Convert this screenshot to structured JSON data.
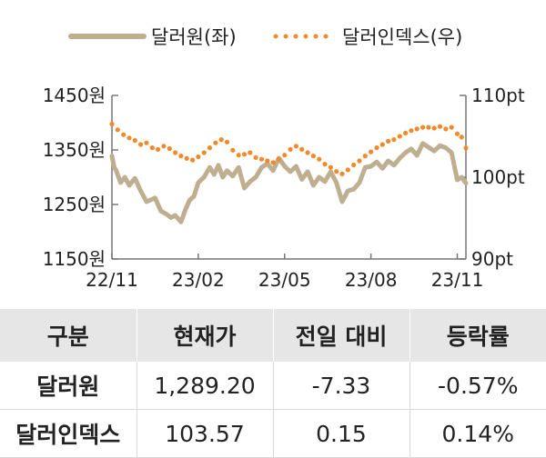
{
  "chart_data": {
    "type": "line",
    "legend_position": "top",
    "colors": {
      "usdkrw": "#bfae8f",
      "dxy": "#f08a2b",
      "axis": "#777777"
    },
    "x_tick_labels": [
      "22/11",
      "23/02",
      "23/05",
      "23/08",
      "23/11"
    ],
    "y_left": {
      "ticks": [
        "1450원",
        "1350원",
        "1250원",
        "1150원"
      ],
      "range": [
        1150,
        1450
      ]
    },
    "y_right": {
      "ticks": [
        "110pt",
        "100pt",
        "90pt"
      ],
      "range": [
        90,
        110
      ]
    },
    "series": [
      {
        "name": "달러원(좌)",
        "axis": "left",
        "style": "solid",
        "x": [
          0,
          0.08,
          0.15,
          0.3,
          0.45,
          0.6,
          0.8,
          1.0,
          1.2,
          1.5,
          1.7,
          1.9,
          2.05,
          2.2,
          2.4,
          2.55,
          2.7,
          2.85,
          3.0,
          3.2,
          3.4,
          3.55,
          3.7,
          3.85,
          4.0,
          4.2,
          4.4,
          4.6,
          4.8,
          5.0,
          5.2,
          5.4,
          5.6,
          5.8,
          6.0,
          6.2,
          6.4,
          6.6,
          6.8,
          7.0,
          7.2,
          7.4,
          7.6,
          7.8,
          8.0,
          8.2,
          8.4,
          8.6,
          8.8,
          9.0,
          9.2,
          9.4,
          9.6,
          9.8,
          10.0,
          10.2,
          10.4,
          10.6,
          10.8,
          11.0,
          11.2,
          11.4,
          11.6,
          11.8,
          12.0,
          12.15,
          12.3
        ],
        "values": [
          1339,
          1318,
          1312,
          1290,
          1300,
          1285,
          1298,
          1275,
          1255,
          1262,
          1238,
          1232,
          1226,
          1230,
          1218,
          1240,
          1258,
          1265,
          1290,
          1300,
          1318,
          1305,
          1322,
          1300,
          1312,
          1302,
          1318,
          1280,
          1292,
          1300,
          1318,
          1325,
          1312,
          1335,
          1320,
          1310,
          1320,
          1296,
          1310,
          1285,
          1300,
          1292,
          1310,
          1290,
          1255,
          1275,
          1278,
          1290,
          1318,
          1320,
          1328,
          1316,
          1330,
          1322,
          1335,
          1345,
          1352,
          1340,
          1362,
          1355,
          1348,
          1358,
          1354,
          1345,
          1295,
          1300,
          1289
        ]
      },
      {
        "name": "달러인덱스(우)",
        "axis": "right",
        "style": "dotted",
        "x": [
          0,
          0.2,
          0.4,
          0.6,
          0.8,
          1.0,
          1.2,
          1.4,
          1.6,
          1.8,
          2.0,
          2.2,
          2.4,
          2.6,
          2.8,
          3.0,
          3.2,
          3.4,
          3.6,
          3.8,
          4.0,
          4.2,
          4.4,
          4.6,
          4.8,
          5.0,
          5.2,
          5.4,
          5.6,
          5.8,
          6.0,
          6.2,
          6.4,
          6.6,
          6.8,
          7.0,
          7.2,
          7.4,
          7.6,
          7.8,
          8.0,
          8.2,
          8.4,
          8.6,
          8.8,
          9.0,
          9.2,
          9.4,
          9.6,
          9.8,
          10.0,
          10.2,
          10.4,
          10.6,
          10.8,
          11.0,
          11.2,
          11.4,
          11.6,
          11.8,
          12.0,
          12.15,
          12.3
        ],
        "values": [
          106.5,
          105.8,
          105.2,
          104.8,
          104.5,
          104.0,
          104.2,
          103.6,
          103.4,
          103.8,
          103.5,
          103.0,
          102.6,
          102.3,
          102.1,
          102.5,
          103.0,
          103.6,
          104.2,
          104.6,
          104.3,
          103.3,
          102.7,
          102.8,
          103.0,
          102.4,
          102.2,
          102.0,
          101.8,
          102.2,
          102.7,
          103.4,
          103.8,
          103.4,
          103.0,
          102.6,
          102.2,
          101.6,
          101.2,
          100.7,
          100.4,
          100.9,
          101.5,
          102.0,
          102.6,
          103.1,
          103.6,
          104.0,
          104.4,
          104.6,
          105.0,
          105.4,
          105.7,
          105.9,
          106.1,
          106.1,
          106.0,
          106.2,
          105.9,
          106.1,
          105.3,
          104.9,
          103.57
        ]
      }
    ]
  },
  "table": {
    "headers": [
      "구분",
      "현재가",
      "전일 대비",
      "등락률"
    ],
    "rows": [
      [
        "달러원",
        "1,289.20",
        "-7.33",
        "-0.57%"
      ],
      [
        "달러인덱스",
        "103.57",
        "0.15",
        "0.14%"
      ]
    ]
  }
}
